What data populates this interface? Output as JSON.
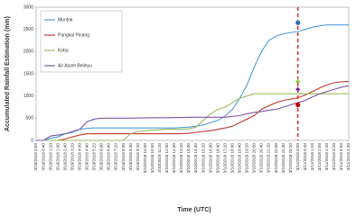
{
  "chart_data": {
    "type": "line",
    "xlabel": "Time (UTC)",
    "ylabel": "Accumulated Rainfall Estimation (mm)",
    "categories": [
      "3/10/2018 0:00",
      "3/10/2018 0:40",
      "3/10/2018 1:20",
      "3/10/2018 2:00",
      "3/10/2018 2:40",
      "3/10/2018 3:20",
      "3/10/2018 4:00",
      "3/10/2018 4:40",
      "3/10/2018 5:20",
      "3/10/2018 6:00",
      "3/10/2018 6:40",
      "3/10/2018 7:20",
      "3/10/2018 8:00",
      "3/10/2018 8:40",
      "3/10/2018 9:20",
      "3/10/2018 10:00",
      "3/10/2018 10:40",
      "3/10/2018 11:20",
      "3/10/2018 12:00",
      "3/10/2018 12:40",
      "3/10/2018 13:20",
      "3/10/2018 14:00",
      "3/10/2018 14:40",
      "3/10/2018 15:20",
      "3/10/2018 16:00",
      "3/10/2018 16:40",
      "3/10/2018 17:20",
      "3/10/2018 18:00",
      "3/10/2018 18:40",
      "3/10/2018 19:20",
      "3/10/2018 20:00",
      "3/10/2018 20:40",
      "3/10/2018 21:20",
      "3/10/2018 22:00",
      "3/10/2018 22:40",
      "3/10/2018 23:20",
      "3/11/2018 0:00",
      "3/11/2018 0:40",
      "3/11/2018 1:20",
      "3/11/2018 2:00",
      "3/11/2018 2:40",
      "3/11/2018 3:20",
      "3/11/2018 4:00",
      "3/11/2018 4:40"
    ],
    "series": [
      {
        "name": "Muntok",
        "color": "#4f9bd6",
        "marker_value": 2650,
        "marker_shape": "circle",
        "marker_color": "#2a6fc0",
        "values": [
          0,
          0,
          50,
          80,
          150,
          180,
          250,
          270,
          280,
          280,
          280,
          280,
          280,
          280,
          280,
          280,
          280,
          280,
          280,
          280,
          290,
          300,
          320,
          350,
          400,
          450,
          550,
          700,
          950,
          1250,
          1650,
          2000,
          2250,
          2350,
          2400,
          2430,
          2450,
          2500,
          2550,
          2580,
          2600,
          2600,
          2600,
          2600
        ]
      },
      {
        "name": "Pangkal Pinang",
        "color": "#c0392b",
        "marker_value": 800,
        "marker_shape": "circle",
        "marker_color": "#c00000",
        "values": [
          0,
          0,
          0,
          0,
          30,
          80,
          120,
          150,
          150,
          150,
          150,
          150,
          150,
          150,
          150,
          150,
          150,
          150,
          150,
          150,
          150,
          160,
          180,
          200,
          220,
          250,
          280,
          320,
          400,
          480,
          560,
          700,
          780,
          850,
          900,
          930,
          960,
          1020,
          1100,
          1180,
          1250,
          1300,
          1320,
          1330
        ]
      },
      {
        "name": "Koba",
        "color": "#9bbb59",
        "marker_value": 1350,
        "marker_shape": "triangle",
        "marker_color": "#8cc63f",
        "values": [
          0,
          0,
          0,
          0,
          0,
          0,
          0,
          0,
          0,
          0,
          0,
          0,
          0,
          150,
          200,
          220,
          230,
          240,
          250,
          250,
          250,
          260,
          300,
          450,
          600,
          700,
          750,
          850,
          950,
          1000,
          1050,
          1050,
          1050,
          1050,
          1050,
          1050,
          1050,
          1050,
          1050,
          1050,
          1050,
          1050,
          1050,
          1050
        ]
      },
      {
        "name": "Air Asam Belinyu",
        "color": "#7e57a6",
        "marker_value": 1150,
        "marker_shape": "diamond",
        "marker_color": "#7030a0",
        "values": [
          0,
          0,
          100,
          120,
          150,
          200,
          250,
          420,
          480,
          500,
          500,
          500,
          500,
          500,
          505,
          505,
          510,
          510,
          510,
          515,
          515,
          520,
          520,
          520,
          520,
          520,
          520,
          540,
          560,
          600,
          630,
          650,
          680,
          700,
          750,
          800,
          850,
          900,
          980,
          1050,
          1100,
          1150,
          1200,
          1230
        ]
      }
    ],
    "vline": "3/11/2018 0:00",
    "vline_color": "#e02020",
    "ylim": [
      0,
      3000
    ],
    "yticks": [
      0,
      500,
      1000,
      1500,
      2000,
      2500,
      3000
    ],
    "grid": false,
    "legend": "upper left"
  }
}
